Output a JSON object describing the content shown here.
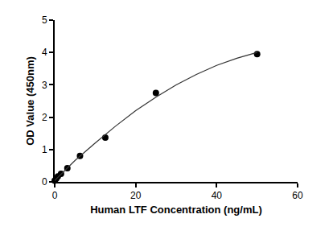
{
  "chart_data": {
    "type": "scatter",
    "x_label": "Human LTF Concentration (ng/mL)",
    "y_label": "OD Value (450nm)",
    "xlim": [
      0,
      60
    ],
    "xticks": [
      0,
      20,
      40,
      60
    ],
    "ylim": [
      0,
      5
    ],
    "yticks": [
      0,
      1,
      2,
      3,
      4,
      5
    ],
    "grid": false,
    "series": [
      {
        "type": "scatter",
        "marker": "circle",
        "color": "#000000",
        "x": [
          0,
          0.39,
          0.78,
          1.56,
          3.125,
          6.25,
          12.5,
          25,
          50
        ],
        "values": [
          0.04,
          0.1,
          0.17,
          0.25,
          0.42,
          0.8,
          1.37,
          2.75,
          3.95
        ]
      },
      {
        "type": "line",
        "line_style": "solid",
        "color": "#333333",
        "x": [
          0,
          5,
          10,
          15,
          20,
          25,
          30,
          35,
          40,
          45,
          50
        ],
        "values": [
          0.04,
          0.66,
          1.2,
          1.72,
          2.2,
          2.62,
          3.0,
          3.32,
          3.6,
          3.82,
          4.0
        ]
      }
    ]
  }
}
